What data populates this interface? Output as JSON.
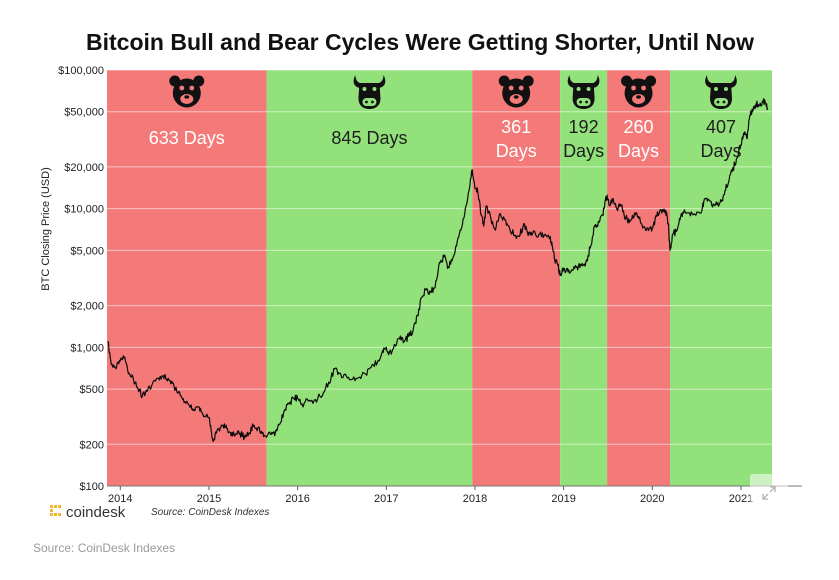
{
  "chart_data": {
    "type": "line",
    "title": "Bitcoin Bull and Bear Cycles Were Getting Shorter, Until Now",
    "xlabel": "",
    "ylabel": "BTC Closing Price (USD)",
    "y_scale": "log",
    "ylim": [
      100,
      100000
    ],
    "xlim": [
      2013.85,
      2021.35
    ],
    "y_ticks": [
      {
        "value": 100,
        "label": "$100"
      },
      {
        "value": 200,
        "label": "$200"
      },
      {
        "value": 500,
        "label": "$500"
      },
      {
        "value": 1000,
        "label": "$1,000"
      },
      {
        "value": 2000,
        "label": "$2,000"
      },
      {
        "value": 5000,
        "label": "$5,000"
      },
      {
        "value": 10000,
        "label": "$10,000"
      },
      {
        "value": 20000,
        "label": "$20,000"
      },
      {
        "value": 50000,
        "label": "$50,000"
      },
      {
        "value": 100000,
        "label": "$100,000"
      }
    ],
    "x_ticks": [
      {
        "value": 2014,
        "label": "2014"
      },
      {
        "value": 2015,
        "label": "2015"
      },
      {
        "value": 2016,
        "label": "2016"
      },
      {
        "value": 2017,
        "label": "2017"
      },
      {
        "value": 2018,
        "label": "2018"
      },
      {
        "value": 2019,
        "label": "2019"
      },
      {
        "value": 2020,
        "label": "2020"
      },
      {
        "value": 2021,
        "label": "2021"
      }
    ],
    "periods": [
      {
        "type": "bear",
        "start": 2013.85,
        "end": 2015.65,
        "label": [
          "633 Days"
        ],
        "icon": "bear-icon"
      },
      {
        "type": "bull",
        "start": 2015.65,
        "end": 2017.97,
        "label": [
          "845 Days"
        ],
        "icon": "bull-icon"
      },
      {
        "type": "bear",
        "start": 2017.97,
        "end": 2018.96,
        "label": [
          "361",
          "Days"
        ],
        "icon": "bear-icon"
      },
      {
        "type": "bull",
        "start": 2018.96,
        "end": 2019.49,
        "label": [
          "192",
          "Days"
        ],
        "icon": "bull-icon"
      },
      {
        "type": "bear",
        "start": 2019.49,
        "end": 2020.2,
        "label": [
          "260",
          "Days"
        ],
        "icon": "bear-icon"
      },
      {
        "type": "bull",
        "start": 2020.2,
        "end": 2021.35,
        "label": [
          "407",
          "Days"
        ],
        "icon": "bull-icon"
      }
    ],
    "series": [
      {
        "name": "BTC Closing Price (USD)",
        "points": [
          [
            2013.86,
            1100
          ],
          [
            2013.9,
            750
          ],
          [
            2013.95,
            700
          ],
          [
            2014.0,
            800
          ],
          [
            2014.05,
            850
          ],
          [
            2014.1,
            650
          ],
          [
            2014.15,
            580
          ],
          [
            2014.2,
            500
          ],
          [
            2014.25,
            450
          ],
          [
            2014.3,
            480
          ],
          [
            2014.35,
            520
          ],
          [
            2014.42,
            600
          ],
          [
            2014.48,
            620
          ],
          [
            2014.52,
            590
          ],
          [
            2014.58,
            570
          ],
          [
            2014.62,
            500
          ],
          [
            2014.67,
            470
          ],
          [
            2014.72,
            400
          ],
          [
            2014.78,
            380
          ],
          [
            2014.82,
            350
          ],
          [
            2014.88,
            370
          ],
          [
            2014.93,
            330
          ],
          [
            2015.0,
            310
          ],
          [
            2015.03,
            240
          ],
          [
            2015.05,
            210
          ],
          [
            2015.08,
            240
          ],
          [
            2015.12,
            250
          ],
          [
            2015.16,
            270
          ],
          [
            2015.2,
            260
          ],
          [
            2015.25,
            230
          ],
          [
            2015.3,
            235
          ],
          [
            2015.35,
            240
          ],
          [
            2015.4,
            225
          ],
          [
            2015.45,
            240
          ],
          [
            2015.5,
            270
          ],
          [
            2015.55,
            260
          ],
          [
            2015.6,
            240
          ],
          [
            2015.65,
            225
          ],
          [
            2015.7,
            235
          ],
          [
            2015.75,
            245
          ],
          [
            2015.8,
            280
          ],
          [
            2015.85,
            350
          ],
          [
            2015.9,
            390
          ],
          [
            2015.95,
            430
          ],
          [
            2016.0,
            430
          ],
          [
            2016.05,
            390
          ],
          [
            2016.12,
            410
          ],
          [
            2016.2,
            420
          ],
          [
            2016.28,
            450
          ],
          [
            2016.35,
            560
          ],
          [
            2016.42,
            700
          ],
          [
            2016.47,
            650
          ],
          [
            2016.55,
            620
          ],
          [
            2016.62,
            590
          ],
          [
            2016.7,
            610
          ],
          [
            2016.77,
            640
          ],
          [
            2016.83,
            720
          ],
          [
            2016.9,
            780
          ],
          [
            2016.96,
            950
          ],
          [
            2017.0,
            1000
          ],
          [
            2017.03,
            900
          ],
          [
            2017.08,
            980
          ],
          [
            2017.15,
            1150
          ],
          [
            2017.2,
            1100
          ],
          [
            2017.25,
            1200
          ],
          [
            2017.3,
            1300
          ],
          [
            2017.35,
            1700
          ],
          [
            2017.4,
            2300
          ],
          [
            2017.45,
            2600
          ],
          [
            2017.5,
            2500
          ],
          [
            2017.55,
            2700
          ],
          [
            2017.6,
            4100
          ],
          [
            2017.65,
            4500
          ],
          [
            2017.7,
            3800
          ],
          [
            2017.75,
            4400
          ],
          [
            2017.8,
            5800
          ],
          [
            2017.85,
            7300
          ],
          [
            2017.9,
            10500
          ],
          [
            2017.95,
            16500
          ],
          [
            2017.97,
            19000
          ],
          [
            2018.0,
            14000
          ],
          [
            2018.03,
            13500
          ],
          [
            2018.07,
            9000
          ],
          [
            2018.1,
            7500
          ],
          [
            2018.13,
            10500
          ],
          [
            2018.18,
            8500
          ],
          [
            2018.23,
            7000
          ],
          [
            2018.28,
            9200
          ],
          [
            2018.33,
            8500
          ],
          [
            2018.38,
            7500
          ],
          [
            2018.45,
            6400
          ],
          [
            2018.5,
            6300
          ],
          [
            2018.55,
            7800
          ],
          [
            2018.6,
            6400
          ],
          [
            2018.65,
            6600
          ],
          [
            2018.72,
            6500
          ],
          [
            2018.78,
            6400
          ],
          [
            2018.85,
            6300
          ],
          [
            2018.87,
            5500
          ],
          [
            2018.9,
            4300
          ],
          [
            2018.93,
            4000
          ],
          [
            2018.96,
            3300
          ],
          [
            2019.0,
            3700
          ],
          [
            2019.05,
            3500
          ],
          [
            2019.1,
            3600
          ],
          [
            2019.15,
            3800
          ],
          [
            2019.2,
            3900
          ],
          [
            2019.25,
            4100
          ],
          [
            2019.3,
            5200
          ],
          [
            2019.35,
            7500
          ],
          [
            2019.4,
            8000
          ],
          [
            2019.44,
            9000
          ],
          [
            2019.47,
            11500
          ],
          [
            2019.49,
            12500
          ],
          [
            2019.52,
            10500
          ],
          [
            2019.55,
            11800
          ],
          [
            2019.6,
            10000
          ],
          [
            2019.65,
            10500
          ],
          [
            2019.7,
            8500
          ],
          [
            2019.75,
            8200
          ],
          [
            2019.8,
            9300
          ],
          [
            2019.85,
            8500
          ],
          [
            2019.9,
            7400
          ],
          [
            2019.95,
            7200
          ],
          [
            2020.0,
            7200
          ],
          [
            2020.05,
            8800
          ],
          [
            2020.1,
            9800
          ],
          [
            2020.15,
            9700
          ],
          [
            2020.18,
            7800
          ],
          [
            2020.2,
            5000
          ],
          [
            2020.23,
            6500
          ],
          [
            2020.28,
            7000
          ],
          [
            2020.32,
            8800
          ],
          [
            2020.37,
            9500
          ],
          [
            2020.42,
            9300
          ],
          [
            2020.48,
            9100
          ],
          [
            2020.55,
            9300
          ],
          [
            2020.58,
            11200
          ],
          [
            2020.63,
            11700
          ],
          [
            2020.68,
            10300
          ],
          [
            2020.73,
            10700
          ],
          [
            2020.78,
            11300
          ],
          [
            2020.82,
            13500
          ],
          [
            2020.86,
            15500
          ],
          [
            2020.9,
            18500
          ],
          [
            2020.95,
            23000
          ],
          [
            2021.0,
            29000
          ],
          [
            2021.03,
            35000
          ],
          [
            2021.07,
            32000
          ],
          [
            2021.1,
            47000
          ],
          [
            2021.13,
            50000
          ],
          [
            2021.17,
            57000
          ],
          [
            2021.2,
            55000
          ],
          [
            2021.25,
            59000
          ],
          [
            2021.27,
            60000
          ],
          [
            2021.3,
            53000
          ]
        ]
      }
    ],
    "brand": {
      "name": "coindesk",
      "source": "Source: CoinDesk Indexes"
    },
    "colors": {
      "bear_fill": "#f47a7a",
      "bull_fill": "#93e17a",
      "bear_text": "#ffffff",
      "bull_text": "#1e1e1e",
      "line": "#0b0b0b",
      "brand_accent": "#f2b632",
      "grid": "#ffffff"
    }
  },
  "footer": {
    "source": "Source: CoinDesk Indexes"
  },
  "icons": {
    "expand": "expand-icon"
  }
}
